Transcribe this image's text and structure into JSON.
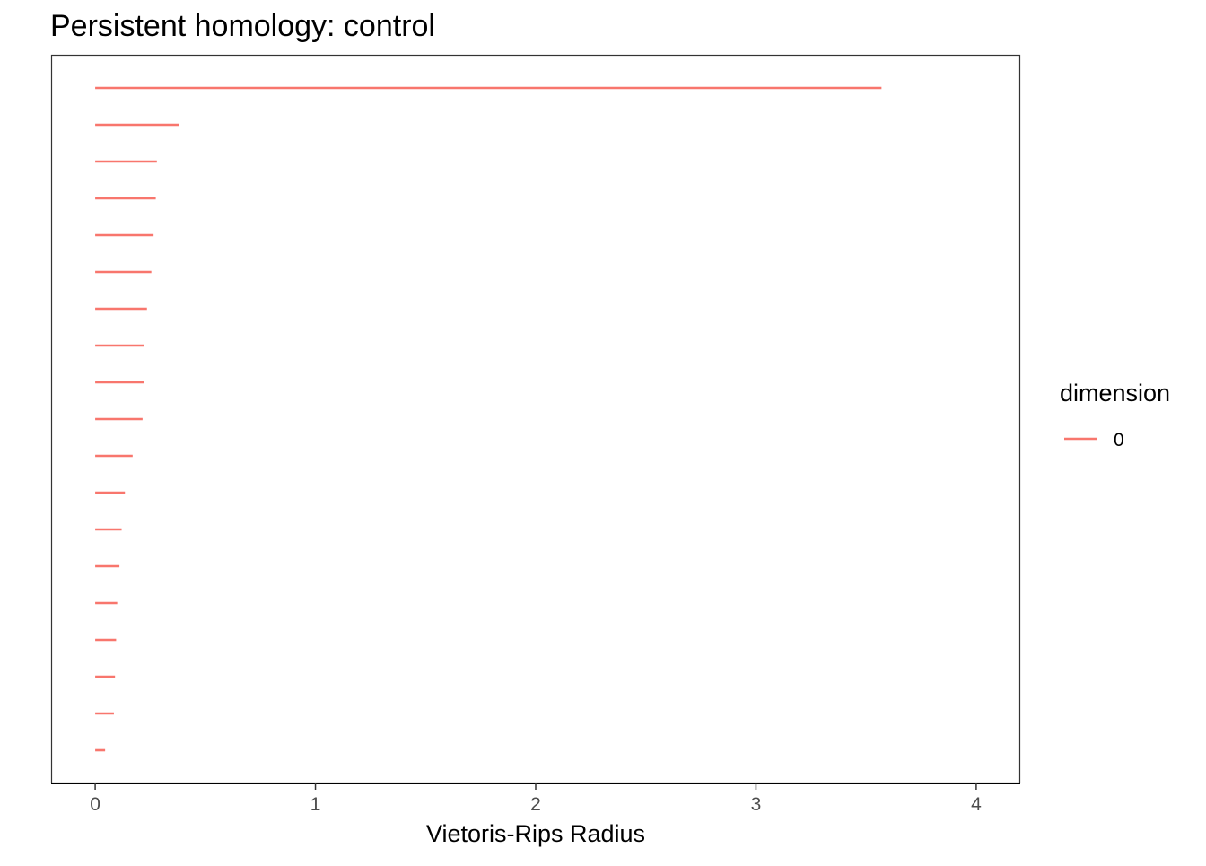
{
  "chart_data": {
    "type": "barcode",
    "title": "Persistent homology: control",
    "xlabel": "Vietoris-Rips Radius",
    "ylabel": "",
    "xlim": [
      -0.2,
      4.2
    ],
    "x_ticks": [
      0,
      1,
      2,
      3,
      4
    ],
    "grid": false,
    "legend": {
      "title": "dimension",
      "placement": "right",
      "entries": [
        {
          "label": "0",
          "color": "#F8766D"
        }
      ]
    },
    "series": [
      {
        "name": "0",
        "color": "#F8766D",
        "bars": [
          {
            "birth": 0,
            "death": 3.57
          },
          {
            "birth": 0,
            "death": 0.38
          },
          {
            "birth": 0,
            "death": 0.28
          },
          {
            "birth": 0,
            "death": 0.275
          },
          {
            "birth": 0,
            "death": 0.265
          },
          {
            "birth": 0,
            "death": 0.255
          },
          {
            "birth": 0,
            "death": 0.235
          },
          {
            "birth": 0,
            "death": 0.22
          },
          {
            "birth": 0,
            "death": 0.22
          },
          {
            "birth": 0,
            "death": 0.215
          },
          {
            "birth": 0,
            "death": 0.17
          },
          {
            "birth": 0,
            "death": 0.135
          },
          {
            "birth": 0,
            "death": 0.12
          },
          {
            "birth": 0,
            "death": 0.11
          },
          {
            "birth": 0,
            "death": 0.1
          },
          {
            "birth": 0,
            "death": 0.095
          },
          {
            "birth": 0,
            "death": 0.09
          },
          {
            "birth": 0,
            "death": 0.085
          },
          {
            "birth": 0,
            "death": 0.045
          }
        ]
      }
    ]
  }
}
